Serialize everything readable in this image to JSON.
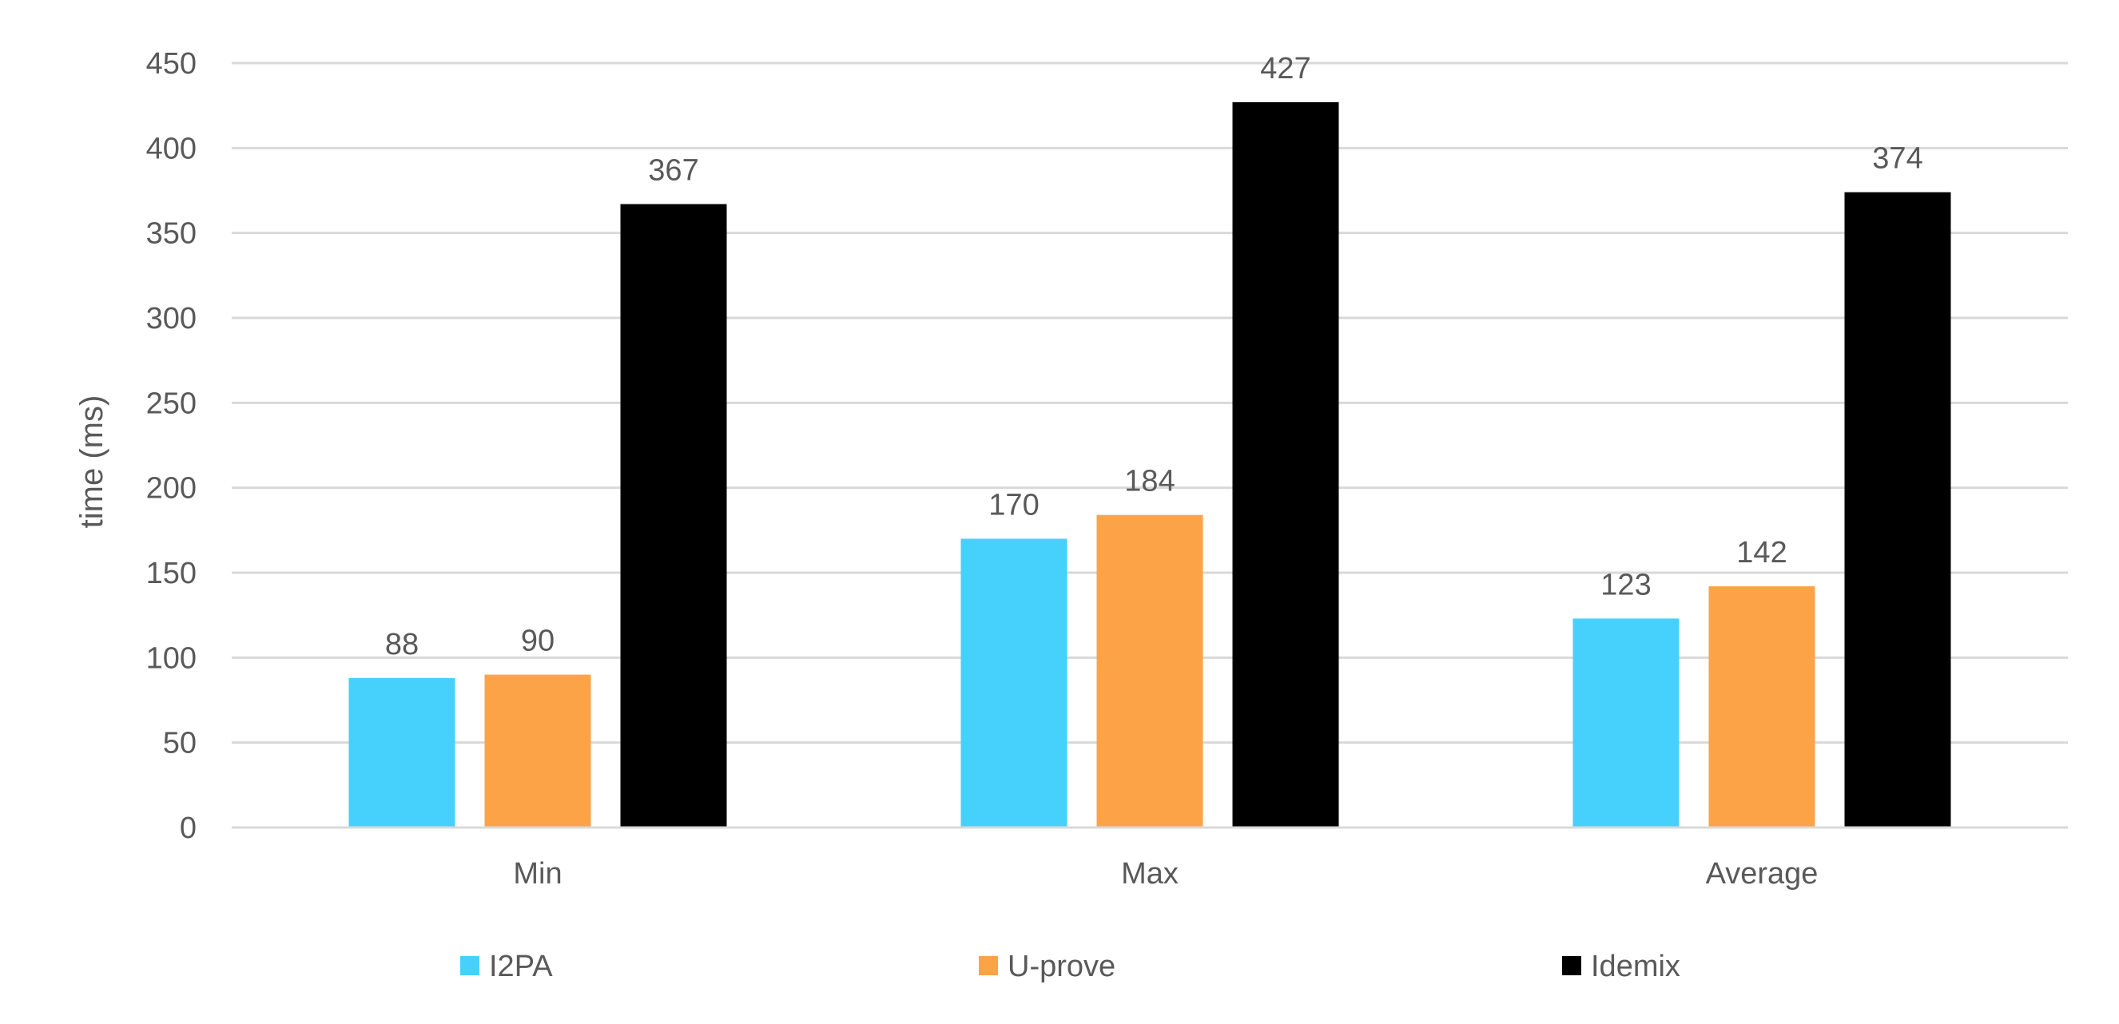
{
  "chart_data": {
    "type": "bar",
    "categories": [
      "Min",
      "Max",
      "Average"
    ],
    "series": [
      {
        "name": "I2PA",
        "color": "#45d1fb",
        "values": [
          88,
          170,
          123
        ]
      },
      {
        "name": "U-prove",
        "color": "#fca348",
        "values": [
          90,
          184,
          142
        ]
      },
      {
        "name": "Idemix",
        "color": "#000000",
        "values": [
          367,
          427,
          374
        ]
      }
    ],
    "title": "",
    "xlabel": "",
    "ylabel": "time (ms)",
    "ylim": [
      0,
      450
    ],
    "yticks": [
      0,
      50,
      100,
      150,
      200,
      250,
      300,
      350,
      400,
      450
    ],
    "grid": true,
    "legend_position": "bottom",
    "data_labels": true
  }
}
